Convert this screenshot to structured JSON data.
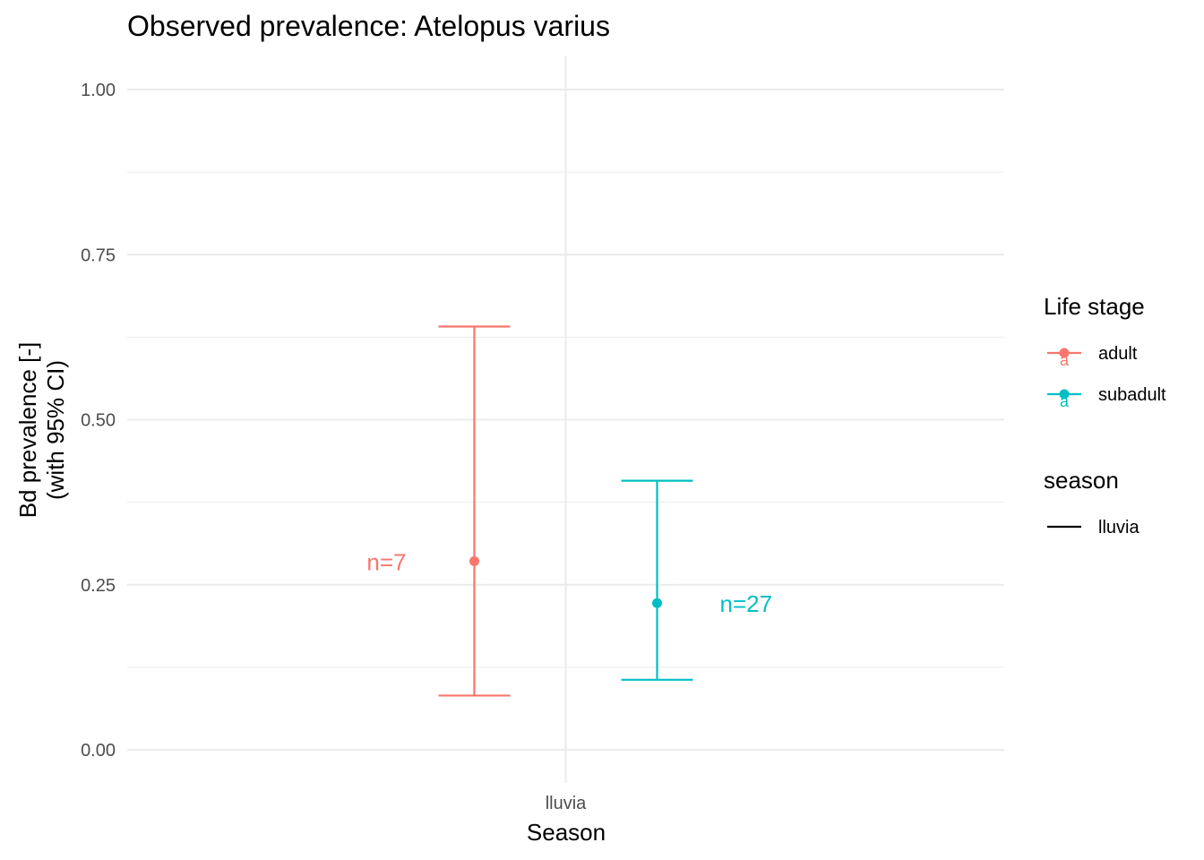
{
  "chart_data": {
    "type": "errorbar",
    "title": "Observed prevalence: Atelopus varius",
    "xlabel": "Season",
    "ylabel_lines": [
      "Bd prevalence [-]",
      "(with 95% CI)"
    ],
    "categories": [
      "lluvia"
    ],
    "ylim": [
      -0.05,
      1.05
    ],
    "yticks": [
      "0.00",
      "0.25",
      "0.50",
      "0.75",
      "1.00"
    ],
    "grid": true,
    "legend_position": "right",
    "series": [
      {
        "name": "adult",
        "color": "#f8766d",
        "x": "lluvia",
        "dodge": -1,
        "value": 0.2857,
        "lower": 0.0822,
        "upper": 0.6411,
        "n_label": "n=7"
      },
      {
        "name": "subadult",
        "color": "#00bfc4",
        "x": "lluvia",
        "dodge": 1,
        "value": 0.2222,
        "lower": 0.1061,
        "upper": 0.4076,
        "n_label": "n=27"
      }
    ],
    "legends": [
      {
        "title": "Life stage",
        "entries": [
          {
            "label": "adult",
            "color": "#f8766d"
          },
          {
            "label": "subadult",
            "color": "#00bfc4"
          }
        ]
      },
      {
        "title": "season",
        "entries": [
          {
            "label": "lluvia",
            "color": "#000000"
          }
        ]
      }
    ]
  }
}
